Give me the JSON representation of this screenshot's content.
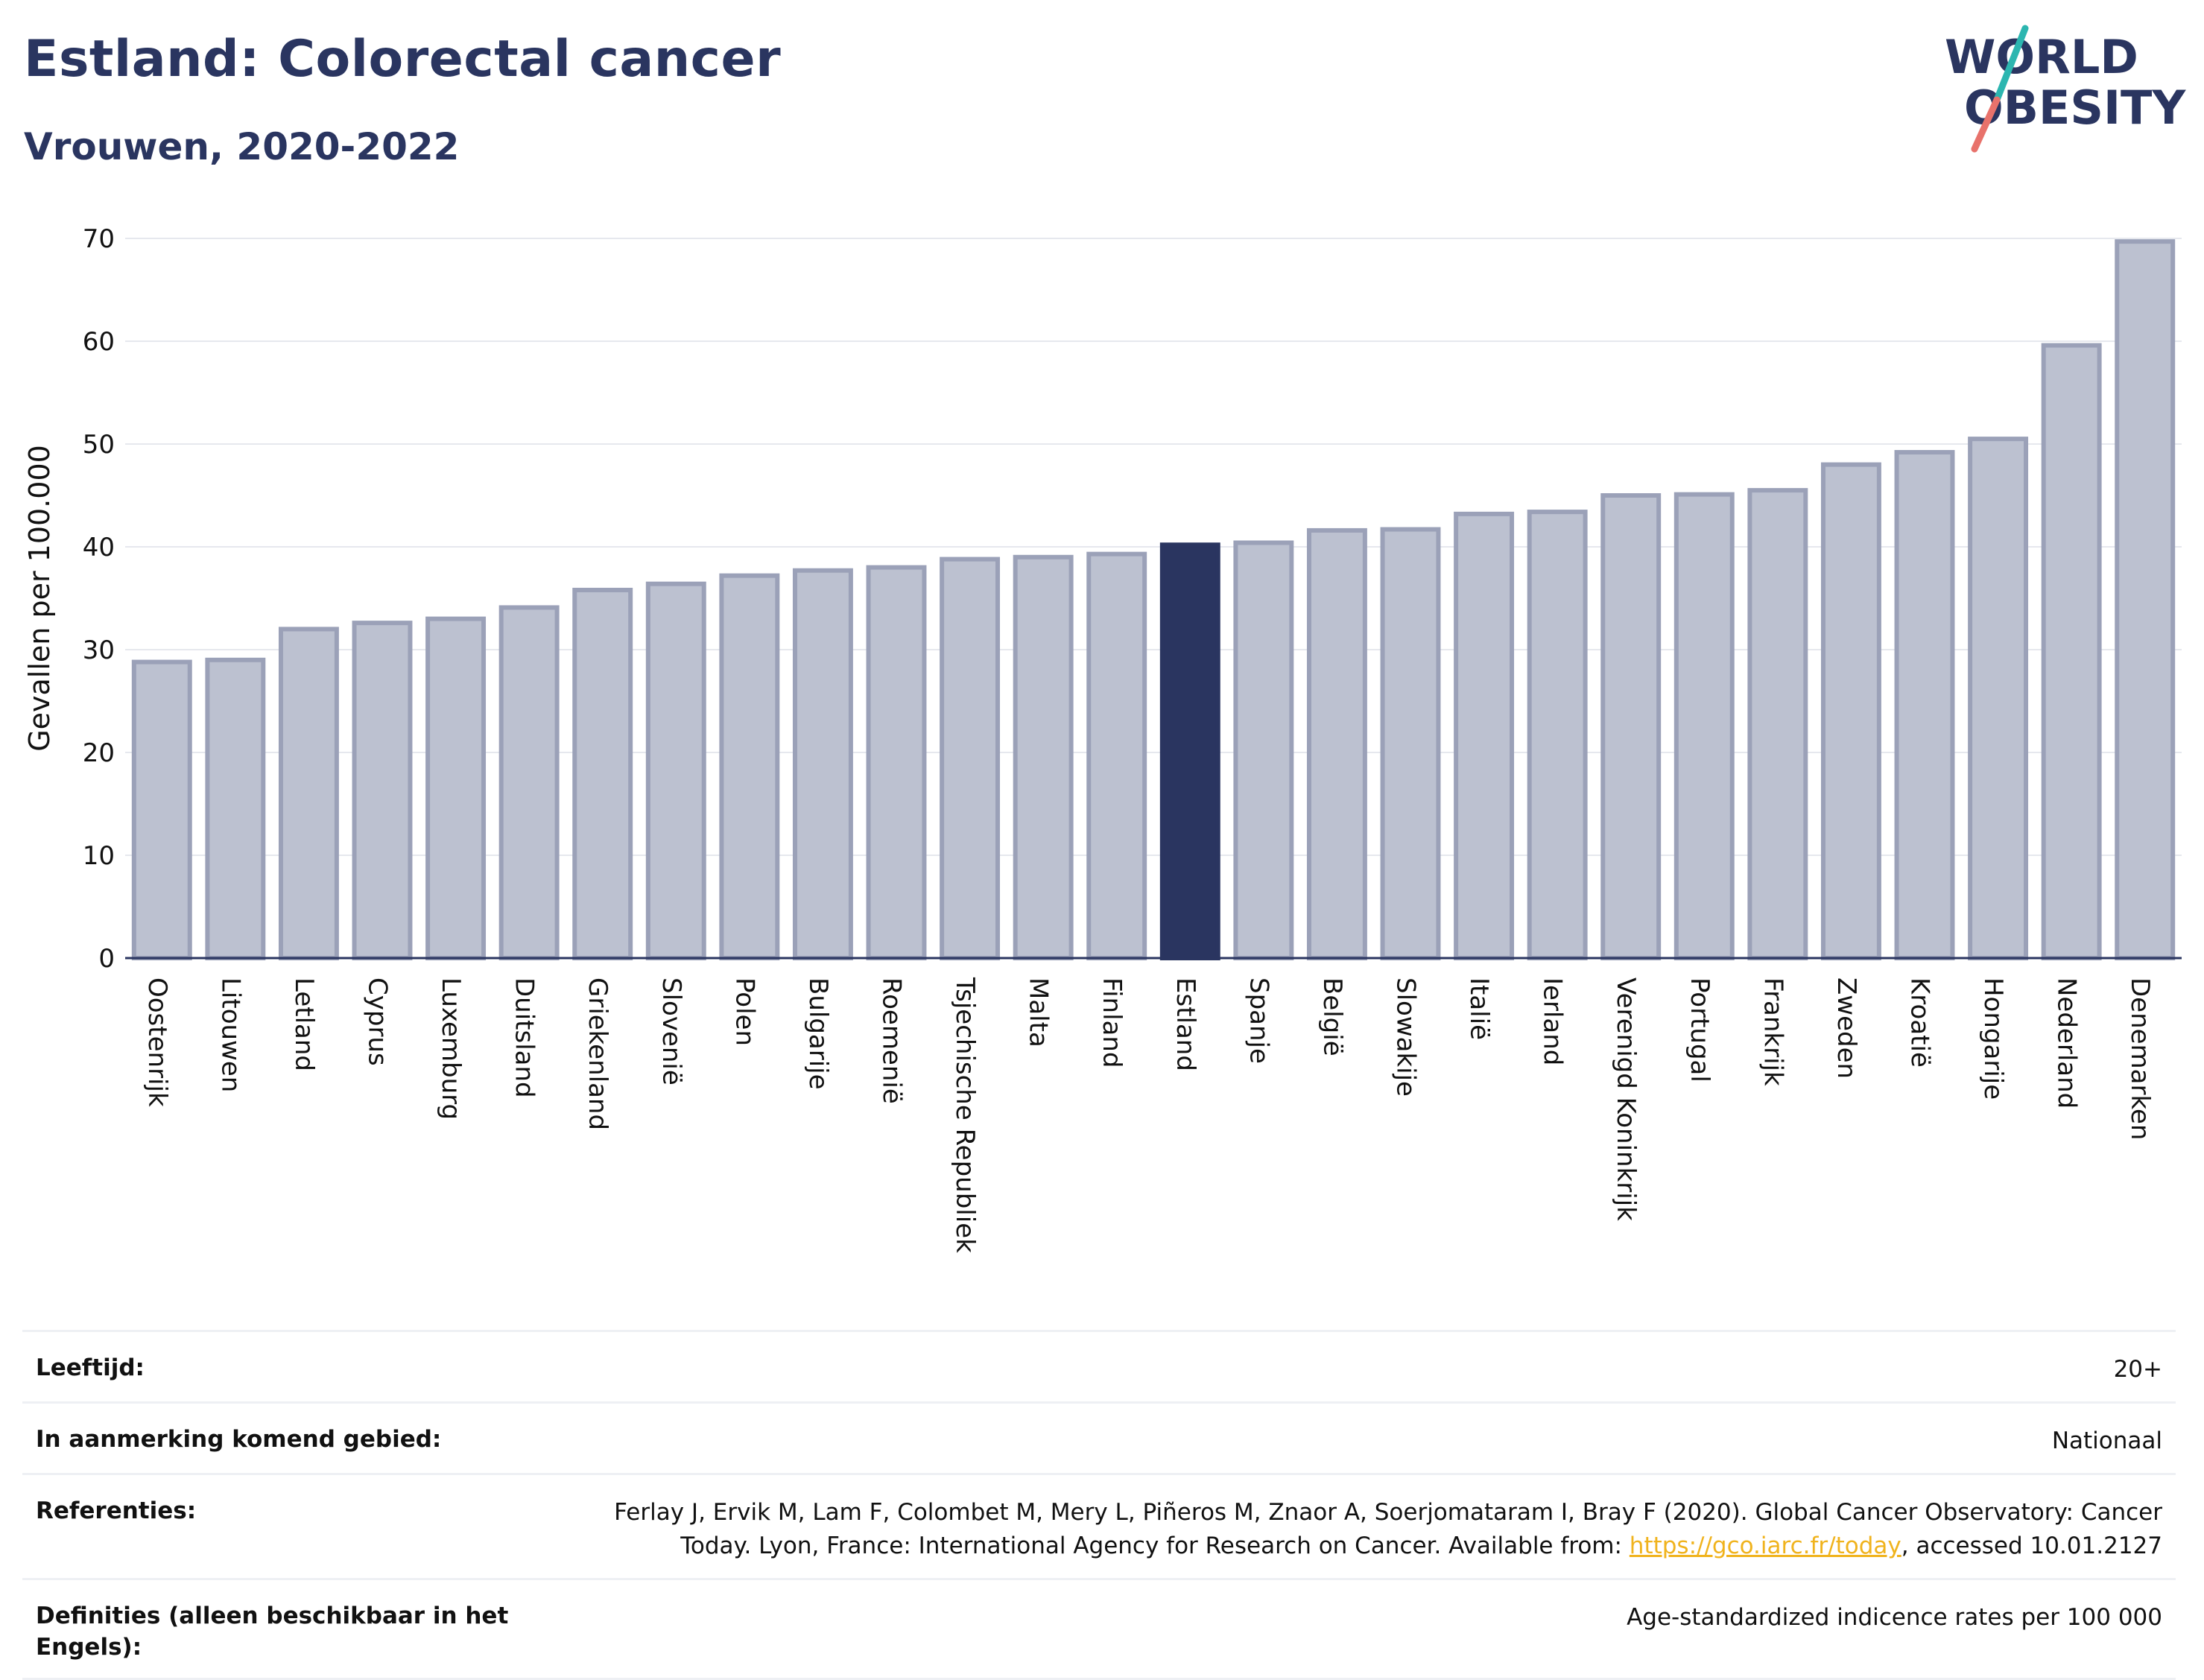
{
  "header": {
    "title": "Estland: Colorectal cancer",
    "subtitle": "Vrouwen, 2020-2022"
  },
  "logo": {
    "line1": "WORLD",
    "line2": "OBESITY"
  },
  "colors": {
    "highlight": "#2a3560",
    "bar": "#bcc1d0",
    "bar_border": "#9ba1b8",
    "grid": "#e6e8ee",
    "title": "#2a3560",
    "logo_teal": "#2cb6b0",
    "logo_coral": "#e8726b"
  },
  "chart_data": {
    "type": "bar",
    "ylabel": "Gevallen per 100.000",
    "ylim": [
      0,
      70
    ],
    "yticks": [
      0,
      10,
      20,
      30,
      40,
      50,
      60,
      70
    ],
    "grid": true,
    "highlight": "Estland",
    "categories": [
      "Oostenrijk",
      "Litouwen",
      "Letland",
      "Cyprus",
      "Luxemburg",
      "Duitsland",
      "Griekenland",
      "Slovenië",
      "Polen",
      "Bulgarije",
      "Roemenië",
      "Tsjechische Republiek",
      "Malta",
      "Finland",
      "Estland",
      "Spanje",
      "België",
      "Slowakije",
      "Italië",
      "Ierland",
      "Verenigd Koninkrijk",
      "Portugal",
      "Frankrijk",
      "Zweden",
      "Kroatië",
      "Hongarije",
      "Nederland",
      "Denemarken"
    ],
    "values": [
      28.8,
      29.0,
      32.0,
      32.6,
      33.0,
      34.1,
      35.8,
      36.4,
      37.2,
      37.7,
      38.0,
      38.8,
      39.0,
      39.3,
      40.2,
      40.4,
      41.6,
      41.7,
      43.2,
      43.4,
      45.0,
      45.1,
      45.5,
      48.0,
      49.2,
      50.5,
      59.6,
      69.7
    ]
  },
  "info": {
    "age_label": "Leeftijd:",
    "age_value": "20+",
    "area_label": "In aanmerking komend gebied:",
    "area_value": "Nationaal",
    "ref_label": "Referenties:",
    "ref_text1": "Ferlay J, Ervik M, Lam F, Colombet M, Mery L, Piñeros M, Znaor A, Soerjomataram I, Bray F (2020). Global Cancer Observatory: Cancer",
    "ref_text2": "Today. Lyon, France: International Agency for Research on Cancer. Available from: ",
    "ref_link": "https://gco.iarc.fr/today",
    "ref_text3": ", accessed 10.01.2127",
    "def_label": "Definities (alleen beschikbaar in het Engels):",
    "def_value": "Age-standardized indicence rates per 100 000"
  }
}
